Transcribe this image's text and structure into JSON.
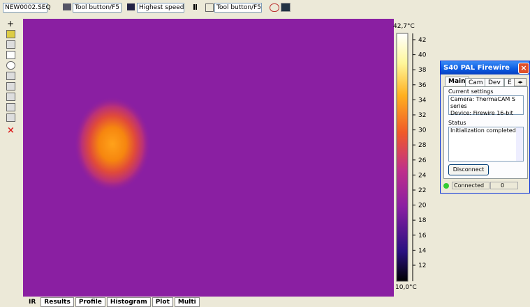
{
  "toolbar": {
    "file": "NEW0002.SEQ",
    "items": [
      "Tool button/F5",
      "Highest speed",
      "Tool button/F5"
    ]
  },
  "scale": {
    "max_label": "42,7°C",
    "min_label": "10,0°C",
    "ticks": [
      42,
      40,
      38,
      36,
      34,
      32,
      30,
      28,
      26,
      24,
      22,
      20,
      18,
      16,
      14,
      12
    ]
  },
  "dialog": {
    "title": "S40 PAL Firewire",
    "tabs": [
      "Main",
      "Cam",
      "Dev",
      "E"
    ],
    "current_settings_label": "Current settings",
    "settings": [
      "Camera: ThermaCAM S series",
      "Device: Firewire 16-bit"
    ],
    "status_label": "Status",
    "status": "Initialization completed",
    "button": "Disconnect",
    "connection": "Connected",
    "counter": "0"
  },
  "views": [
    "IR",
    "Results",
    "Profile",
    "Histogram",
    "Plot",
    "Multi"
  ]
}
